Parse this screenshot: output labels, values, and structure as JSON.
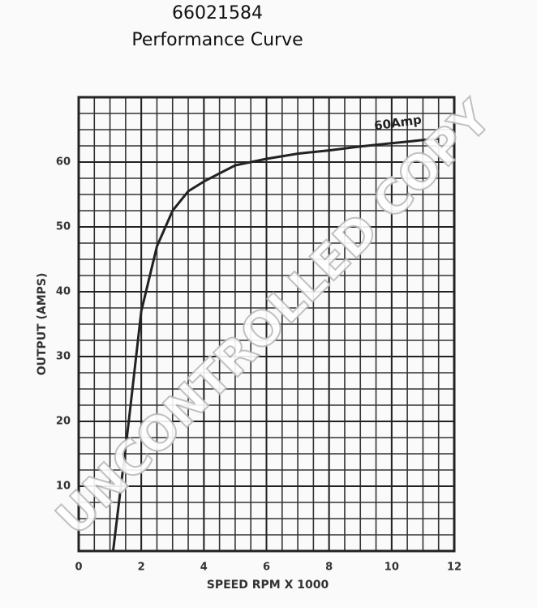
{
  "chart_data": {
    "type": "line",
    "title": "66021584",
    "subtitle": "Performance Curve",
    "x_label": "SPEED RPM X 1000",
    "y_label": "OUTPUT (AMPS)",
    "annotation": "60Amp",
    "watermark": "UNCONTROLLED COPY",
    "x": [
      1.1,
      1.3,
      1.6,
      2,
      2.5,
      3,
      3.5,
      4,
      5,
      6,
      7,
      8,
      9,
      10,
      11,
      11.5
    ],
    "series": [
      {
        "name": "60Amp",
        "color": "#222222",
        "values": [
          0,
          8,
          20,
          37,
          47,
          52.5,
          55.5,
          57,
          59.5,
          60.5,
          61.3,
          61.8,
          62.4,
          62.9,
          63.4,
          63.6
        ]
      }
    ],
    "xlim": [
      0,
      12
    ],
    "ylim": [
      0,
      70
    ],
    "xticks": [
      0,
      2,
      4,
      6,
      8,
      10,
      12
    ],
    "yticks": [
      10,
      20,
      30,
      40,
      50,
      60
    ],
    "grid": true
  }
}
